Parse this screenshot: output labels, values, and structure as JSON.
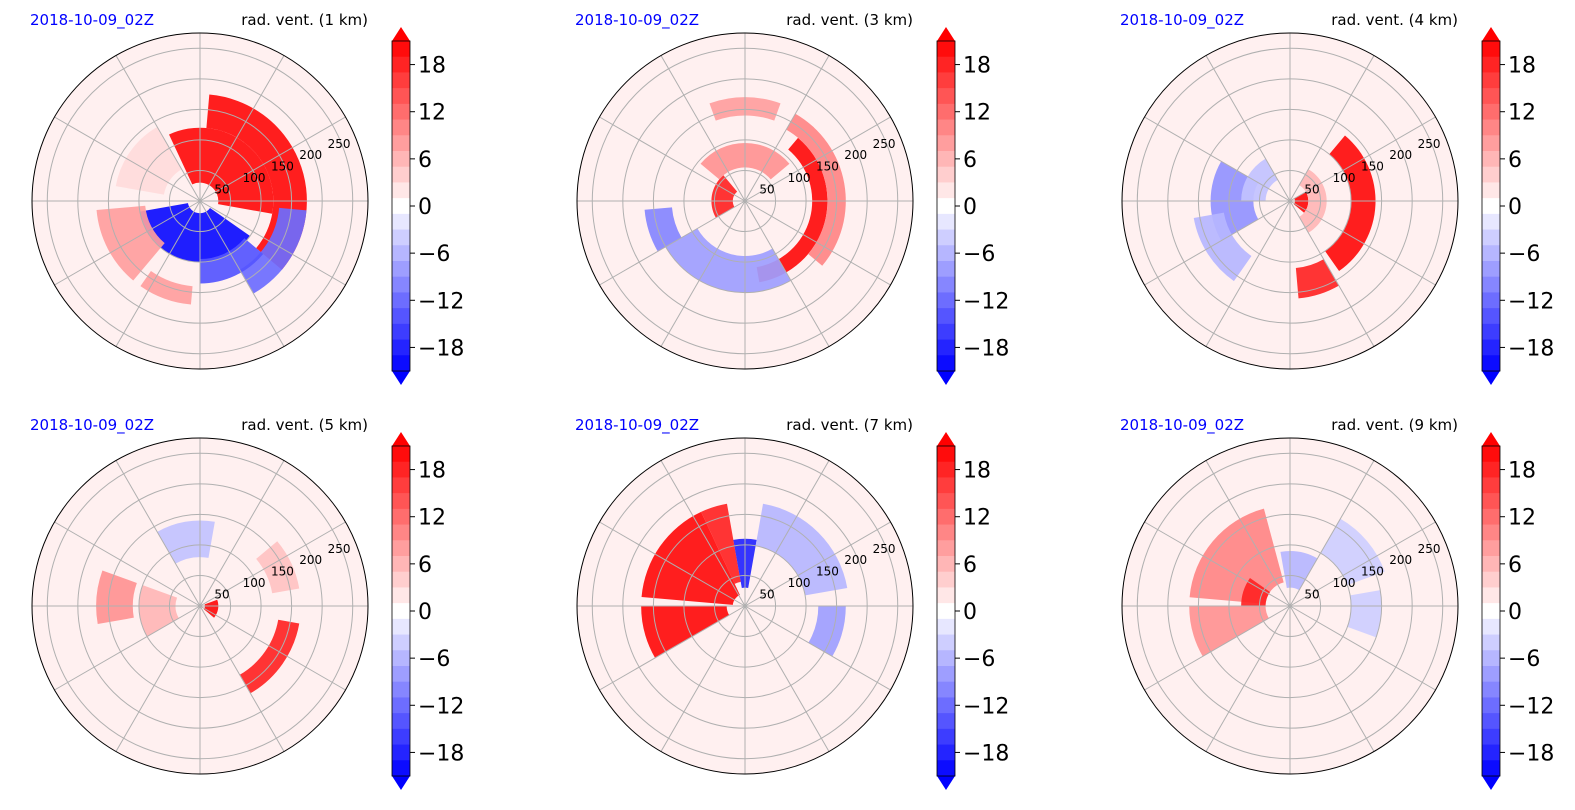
{
  "chart_data": [
    {
      "type": "heatmap",
      "timestamp": "2018-10-09_02Z",
      "title": "rad. vent. (1 km)",
      "rings": [
        50,
        100,
        150,
        200,
        250
      ],
      "colorbar_ticks": [
        18,
        12,
        6,
        0,
        -6,
        -12,
        -18
      ],
      "clim": [
        -21,
        21
      ],
      "features": [
        {
          "kind": "arc",
          "r": [
            30,
            120
          ],
          "a": [
            -115,
            10
          ],
          "v": 20
        },
        {
          "kind": "arc",
          "r": [
            120,
            175
          ],
          "a": [
            -85,
            40
          ],
          "v": 20
        },
        {
          "kind": "arc",
          "r": [
            130,
            175
          ],
          "a": [
            5,
            60
          ],
          "v": -12
        },
        {
          "kind": "arc",
          "r": [
            20,
            100
          ],
          "a": [
            35,
            170
          ],
          "v": -20
        },
        {
          "kind": "arc",
          "r": [
            95,
            135
          ],
          "a": [
            40,
            90
          ],
          "v": -14
        },
        {
          "kind": "arc",
          "r": [
            90,
            170
          ],
          "a": [
            130,
            175
          ],
          "v": 8
        },
        {
          "kind": "arc",
          "r": [
            140,
            170
          ],
          "a": [
            95,
            125
          ],
          "v": 8
        },
        {
          "kind": "arc",
          "r": [
            60,
            140
          ],
          "a": [
            -170,
            -120
          ],
          "v": 3
        }
      ]
    },
    {
      "type": "heatmap",
      "timestamp": "2018-10-09_02Z",
      "title": "rad. vent. (3 km)",
      "rings": [
        50,
        100,
        150,
        200,
        250
      ],
      "colorbar_ticks": [
        18,
        12,
        6,
        0,
        -6,
        -12,
        -18
      ],
      "clim": [
        -21,
        21
      ],
      "features": [
        {
          "kind": "arc",
          "r": [
            110,
            135
          ],
          "a": [
            -50,
            80
          ],
          "v": 20
        },
        {
          "kind": "arc",
          "r": [
            135,
            165
          ],
          "a": [
            -60,
            40
          ],
          "v": 10
        },
        {
          "kind": "arc",
          "r": [
            20,
            55
          ],
          "a": [
            150,
            230
          ],
          "v": 18
        },
        {
          "kind": "arc",
          "r": [
            55,
            95
          ],
          "a": [
            -140,
            -40
          ],
          "v": 9
        },
        {
          "kind": "arc",
          "r": [
            90,
            150
          ],
          "a": [
            60,
            150
          ],
          "v": -8
        },
        {
          "kind": "arc",
          "r": [
            120,
            165
          ],
          "a": [
            150,
            175
          ],
          "v": -10
        },
        {
          "kind": "arc",
          "r": [
            140,
            170
          ],
          "a": [
            -110,
            -70
          ],
          "v": 8
        }
      ]
    },
    {
      "type": "heatmap",
      "timestamp": "2018-10-09_02Z",
      "title": "rad. vent. (4 km)",
      "rings": [
        50,
        100,
        150,
        200,
        250
      ],
      "colorbar_ticks": [
        18,
        12,
        6,
        0,
        -6,
        -12,
        -18
      ],
      "clim": [
        -21,
        21
      ],
      "features": [
        {
          "kind": "arc",
          "r": [
            100,
            140
          ],
          "a": [
            -50,
            55
          ],
          "v": 20
        },
        {
          "kind": "arc",
          "r": [
            8,
            30
          ],
          "a": [
            -30,
            40
          ],
          "v": 20
        },
        {
          "kind": "arc",
          "r": [
            110,
            160
          ],
          "a": [
            60,
            85
          ],
          "v": 18
        },
        {
          "kind": "arc",
          "r": [
            30,
            60
          ],
          "a": [
            -60,
            60
          ],
          "v": 6
        },
        {
          "kind": "arc",
          "r": [
            60,
            130
          ],
          "a": [
            150,
            210
          ],
          "v": -9
        },
        {
          "kind": "arc",
          "r": [
            110,
            160
          ],
          "a": [
            125,
            170
          ],
          "v": -6
        },
        {
          "kind": "arc",
          "r": [
            40,
            80
          ],
          "a": [
            180,
            240
          ],
          "v": -5
        }
      ]
    },
    {
      "type": "heatmap",
      "timestamp": "2018-10-09_02Z",
      "title": "rad. vent. (5 km)",
      "rings": [
        50,
        100,
        150,
        200,
        250
      ],
      "colorbar_ticks": [
        18,
        12,
        6,
        0,
        -6,
        -12,
        -18
      ],
      "clim": [
        -21,
        21
      ],
      "features": [
        {
          "kind": "arc",
          "r": [
            8,
            30
          ],
          "a": [
            -20,
            40
          ],
          "v": 20
        },
        {
          "kind": "arc",
          "r": [
            130,
            165
          ],
          "a": [
            10,
            60
          ],
          "v": 18
        },
        {
          "kind": "arc",
          "r": [
            110,
            170
          ],
          "a": [
            170,
            200
          ],
          "v": 9
        },
        {
          "kind": "arc",
          "r": [
            40,
            100
          ],
          "a": [
            150,
            200
          ],
          "v": 6
        },
        {
          "kind": "arc",
          "r": [
            80,
            140
          ],
          "a": [
            -120,
            -80
          ],
          "v": -5
        },
        {
          "kind": "arc",
          "r": [
            120,
            165
          ],
          "a": [
            -40,
            -10
          ],
          "v": 5
        }
      ]
    },
    {
      "type": "heatmap",
      "timestamp": "2018-10-09_02Z",
      "title": "rad. vent. (7 km)",
      "rings": [
        50,
        100,
        150,
        200,
        250
      ],
      "colorbar_ticks": [
        18,
        12,
        6,
        0,
        -6,
        -12,
        -18
      ],
      "clim": [
        -21,
        21
      ],
      "features": [
        {
          "kind": "arc",
          "r": [
            20,
            170
          ],
          "a": [
            -175,
            -115
          ],
          "v": 20
        },
        {
          "kind": "arc",
          "r": [
            40,
            170
          ],
          "a": [
            -115,
            -100
          ],
          "v": 18
        },
        {
          "kind": "arc",
          "r": [
            30,
            170
          ],
          "a": [
            150,
            180
          ],
          "v": 20
        },
        {
          "kind": "arc",
          "r": [
            30,
            110
          ],
          "a": [
            -100,
            -80
          ],
          "v": -18
        },
        {
          "kind": "arc",
          "r": [
            100,
            170
          ],
          "a": [
            -80,
            -10
          ],
          "v": -6
        },
        {
          "kind": "arc",
          "r": [
            120,
            165
          ],
          "a": [
            0,
            30
          ],
          "v": -8
        }
      ]
    },
    {
      "type": "heatmap",
      "timestamp": "2018-10-09_02Z",
      "title": "rad. vent. (9 km)",
      "rings": [
        50,
        100,
        150,
        200,
        250
      ],
      "colorbar_ticks": [
        18,
        12,
        6,
        0,
        -6,
        -12,
        -18
      ],
      "clim": [
        -21,
        21
      ],
      "features": [
        {
          "kind": "arc",
          "r": [
            40,
            165
          ],
          "a": [
            -175,
            -105
          ],
          "v": 10
        },
        {
          "kind": "arc",
          "r": [
            40,
            165
          ],
          "a": [
            150,
            180
          ],
          "v": 9
        },
        {
          "kind": "arc",
          "r": [
            40,
            80
          ],
          "a": [
            -180,
            -145
          ],
          "v": 18
        },
        {
          "kind": "arc",
          "r": [
            30,
            90
          ],
          "a": [
            -100,
            -60
          ],
          "v": -6
        },
        {
          "kind": "arc",
          "r": [
            100,
            165
          ],
          "a": [
            -60,
            -20
          ],
          "v": -4
        },
        {
          "kind": "arc",
          "r": [
            100,
            150
          ],
          "a": [
            -10,
            20
          ],
          "v": -4
        }
      ]
    }
  ]
}
